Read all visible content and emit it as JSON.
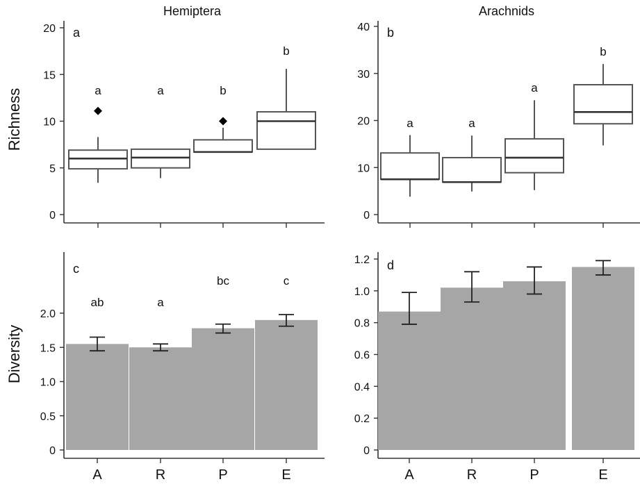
{
  "figure": {
    "row_labels": [
      "Richness",
      "Diversity"
    ],
    "x_categories": [
      "A",
      "R",
      "P",
      "E"
    ]
  },
  "colors": {
    "box_stroke": "#555555",
    "median": "#333333",
    "outlier": "#000000",
    "bar_fill": "#a6a6a6",
    "axis": "#333333"
  },
  "chart_data": [
    {
      "type": "box",
      "title": "Hemiptera",
      "panel_label": "a",
      "ylabel": "Richness",
      "categories": [
        "A",
        "R",
        "P",
        "E"
      ],
      "ylim": [
        0,
        20
      ],
      "yticks": [
        0,
        5,
        10,
        15,
        20
      ],
      "boxes": [
        {
          "category": "A",
          "whisker_low": 3.4,
          "q1": 4.9,
          "median": 6.0,
          "q3": 6.9,
          "whisker_high": 8.3,
          "outliers": [
            11.1
          ],
          "letter": "a"
        },
        {
          "category": "R",
          "whisker_low": 3.9,
          "q1": 5.0,
          "median": 6.1,
          "q3": 7.0,
          "whisker_high": 7.0,
          "outliers": [],
          "letter": "a"
        },
        {
          "category": "P",
          "whisker_low": 6.7,
          "q1": 6.7,
          "median": 6.7,
          "q3": 8.0,
          "whisker_high": 9.3,
          "outliers": [
            10.0
          ],
          "letter": "b"
        },
        {
          "category": "E",
          "whisker_low": 7.0,
          "q1": 7.0,
          "median": 10.0,
          "q3": 11.0,
          "whisker_high": 15.6,
          "outliers": [],
          "letter": "b"
        }
      ]
    },
    {
      "type": "box",
      "title": "Arachnids",
      "panel_label": "b",
      "ylabel": "",
      "categories": [
        "A",
        "R",
        "P",
        "E"
      ],
      "ylim": [
        0,
        40
      ],
      "yticks": [
        0,
        10,
        20,
        30,
        40
      ],
      "boxes": [
        {
          "category": "A",
          "whisker_low": 3.8,
          "q1": 7.5,
          "median": 7.5,
          "q3": 13.1,
          "whisker_high": 16.9,
          "outliers": [],
          "letter": "a"
        },
        {
          "category": "R",
          "whisker_low": 4.9,
          "q1": 6.9,
          "median": 6.9,
          "q3": 12.1,
          "whisker_high": 16.8,
          "outliers": [],
          "letter": "a"
        },
        {
          "category": "P",
          "whisker_low": 5.2,
          "q1": 8.9,
          "median": 12.1,
          "q3": 16.1,
          "whisker_high": 24.3,
          "outliers": [],
          "letter": "a"
        },
        {
          "category": "E",
          "whisker_low": 14.7,
          "q1": 19.3,
          "median": 21.8,
          "q3": 27.6,
          "whisker_high": 32.0,
          "outliers": [],
          "letter": "b"
        }
      ]
    },
    {
      "type": "bar",
      "title": "",
      "panel_label": "c",
      "ylabel": "Diversity",
      "categories": [
        "A",
        "R",
        "P",
        "E"
      ],
      "ylim": [
        0,
        2.4
      ],
      "yticks": [
        0,
        0.5,
        1.0,
        1.5,
        2.0
      ],
      "ytick_labels": [
        "0",
        "0.5",
        "1.0",
        "1.5",
        "2.0"
      ],
      "values": [
        1.55,
        1.5,
        1.78,
        1.9
      ],
      "err_low": [
        1.45,
        1.45,
        1.71,
        1.81
      ],
      "err_high": [
        1.65,
        1.55,
        1.84,
        1.98
      ],
      "letters": [
        "ab",
        "a",
        "bc",
        "c"
      ]
    },
    {
      "type": "bar",
      "title": "",
      "panel_label": "d",
      "ylabel": "",
      "categories": [
        "A",
        "R",
        "P",
        "E"
      ],
      "ylim": [
        0,
        1.2
      ],
      "yticks": [
        0,
        0.2,
        0.4,
        0.6,
        0.8,
        1.0,
        1.2
      ],
      "ytick_labels": [
        "0",
        "0.2",
        "0.4",
        "0.6",
        "0.8",
        "1.0",
        "1.2"
      ],
      "values": [
        0.87,
        1.02,
        1.06,
        1.15
      ],
      "err_low": [
        0.79,
        0.93,
        0.98,
        1.1
      ],
      "err_high": [
        0.99,
        1.12,
        1.15,
        1.19
      ],
      "letters": [
        "",
        "",
        "",
        ""
      ]
    }
  ]
}
